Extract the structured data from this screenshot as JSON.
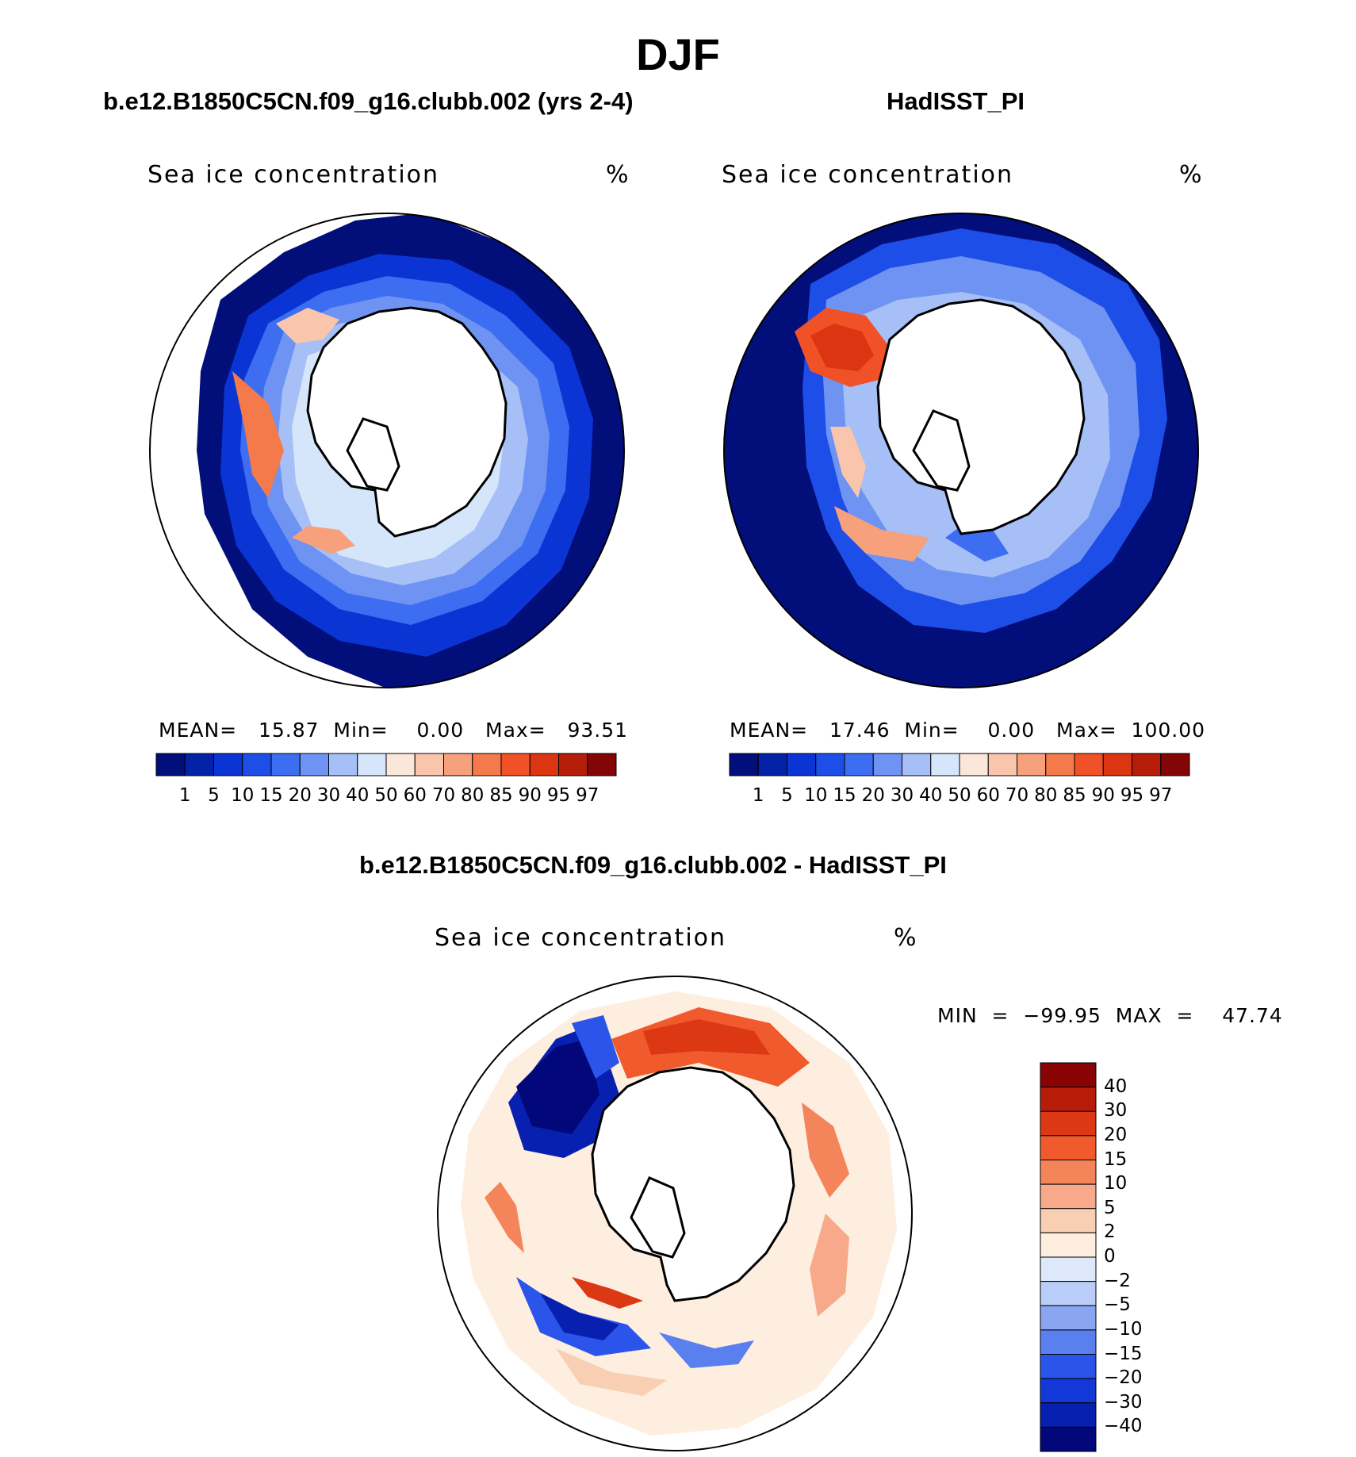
{
  "season_title": "DJF",
  "panels": {
    "model": {
      "case_title": "b.e12.B1850C5CN.f09_g16.clubb.002 (yrs 2-4)",
      "variable": "Sea ice concentration",
      "units": "%",
      "stats": "MEAN=   15.87  Min=    0.00   Max=   93.51"
    },
    "obs": {
      "case_title": "HadISST_PI",
      "variable": "Sea ice concentration",
      "units": "%",
      "stats": "MEAN=   17.46  Min=    0.00   Max=  100.00"
    },
    "diff": {
      "case_title": "b.e12.B1850C5CN.f09_g16.clubb.002 - HadISST_PI",
      "variable": "Sea ice concentration",
      "units": "%",
      "stats": "MIN  =  −99.95  MAX  =    47.74"
    }
  },
  "colorbar_abs": {
    "colors": [
      "#020e7a",
      "#0422a8",
      "#0a35d4",
      "#1e4ee8",
      "#3d6df0",
      "#6f93f2",
      "#a6bff6",
      "#d6e6fa",
      "#fbe6da",
      "#f9c5ad",
      "#f7a07c",
      "#f47a4c",
      "#f05126",
      "#dc3512",
      "#b51c0a",
      "#830506"
    ],
    "ticks": [
      "1",
      "5",
      "10",
      "15",
      "20",
      "30",
      "40",
      "50",
      "60",
      "70",
      "80",
      "85",
      "90",
      "95",
      "97"
    ]
  },
  "colorbar_diff": {
    "colors": [
      "#02087a",
      "#0820b0",
      "#1238d8",
      "#2b55ea",
      "#5a7fef",
      "#8aa6f3",
      "#b9cdf8",
      "#dde9fb",
      "#fdeedf",
      "#f9cfb3",
      "#f7a98a",
      "#f4845a",
      "#f05a2c",
      "#dc3814",
      "#b71c0a",
      "#8a0304"
    ],
    "ticks": [
      "40",
      "30",
      "20",
      "15",
      "10",
      "5",
      "2",
      "0",
      "−2",
      "−5",
      "−10",
      "−15",
      "−20",
      "−30",
      "−40"
    ]
  }
}
